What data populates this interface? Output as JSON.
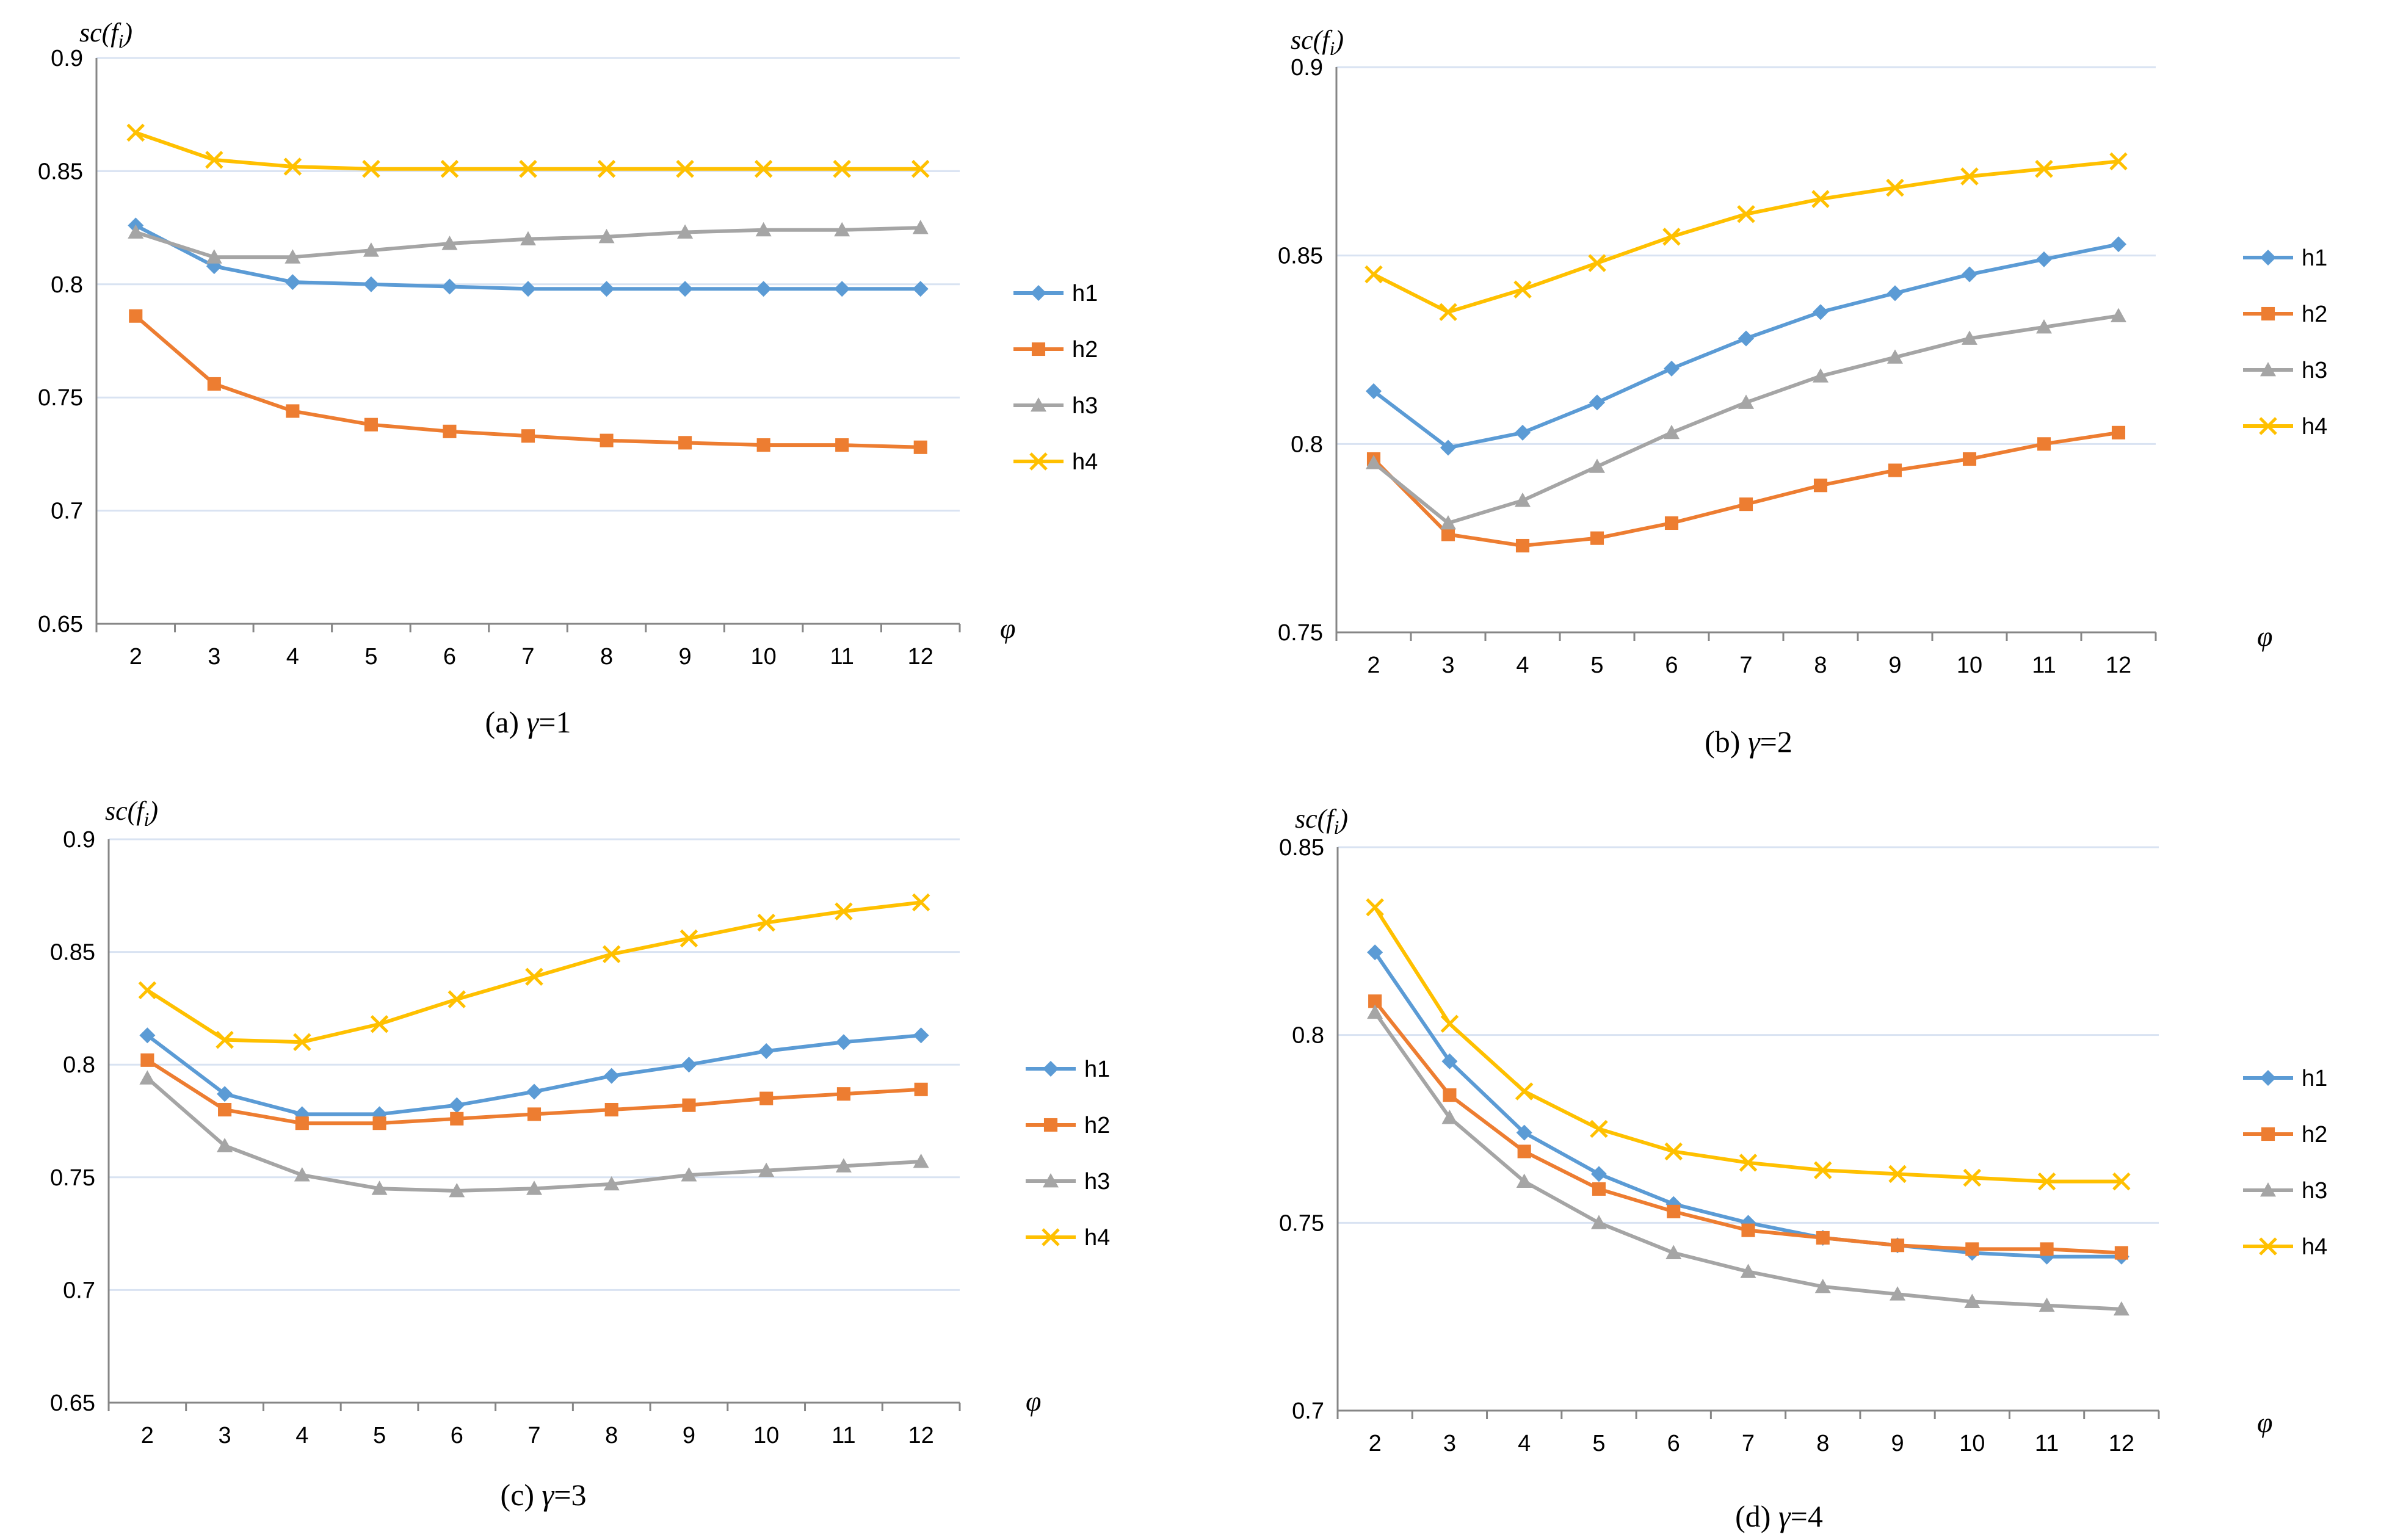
{
  "chart_data": [
    {
      "type": "line",
      "caption_prefix": "(a) ",
      "caption_var": "γ",
      "caption_value": "=1",
      "ylabel_main": "sc(f",
      "ylabel_sub": "i",
      "ylabel_close": ")",
      "xlabel": "φ",
      "ylim": [
        0.65,
        0.9
      ],
      "yticks": [
        "0.65",
        "0.7",
        "0.75",
        "0.8",
        "0.85",
        "0.9"
      ],
      "categories": [
        "2",
        "3",
        "4",
        "5",
        "6",
        "7",
        "8",
        "9",
        "10",
        "11",
        "12"
      ],
      "grid": true,
      "legend": "right",
      "series": [
        {
          "name": "h1",
          "values": [
            0.826,
            0.808,
            0.801,
            0.8,
            0.799,
            0.798,
            0.798,
            0.798,
            0.798,
            0.798,
            0.798
          ]
        },
        {
          "name": "h2",
          "values": [
            0.786,
            0.756,
            0.744,
            0.738,
            0.735,
            0.733,
            0.731,
            0.73,
            0.729,
            0.729,
            0.728
          ]
        },
        {
          "name": "h3",
          "values": [
            0.823,
            0.812,
            0.812,
            0.815,
            0.818,
            0.82,
            0.821,
            0.823,
            0.824,
            0.824,
            0.825
          ]
        },
        {
          "name": "h4",
          "values": [
            0.867,
            0.855,
            0.852,
            0.851,
            0.851,
            0.851,
            0.851,
            0.851,
            0.851,
            0.851,
            0.851
          ]
        }
      ]
    },
    {
      "type": "line",
      "caption_prefix": "(b) ",
      "caption_var": "γ",
      "caption_value": "=2",
      "ylabel_main": "sc(f",
      "ylabel_sub": "i",
      "ylabel_close": ")",
      "xlabel": "φ",
      "ylim": [
        0.75,
        0.9
      ],
      "yticks": [
        "0.75",
        "0.8",
        "0.85",
        "0.9"
      ],
      "categories": [
        "2",
        "3",
        "4",
        "5",
        "6",
        "7",
        "8",
        "9",
        "10",
        "11",
        "12"
      ],
      "grid": true,
      "legend": "right",
      "series": [
        {
          "name": "h1",
          "values": [
            0.814,
            0.799,
            0.803,
            0.811,
            0.82,
            0.828,
            0.835,
            0.84,
            0.845,
            0.849,
            0.853
          ]
        },
        {
          "name": "h2",
          "values": [
            0.796,
            0.776,
            0.773,
            0.775,
            0.779,
            0.784,
            0.789,
            0.793,
            0.796,
            0.8,
            0.803
          ]
        },
        {
          "name": "h3",
          "values": [
            0.795,
            0.779,
            0.785,
            0.794,
            0.803,
            0.811,
            0.818,
            0.823,
            0.828,
            0.831,
            0.834
          ]
        },
        {
          "name": "h4",
          "values": [
            0.845,
            0.835,
            0.841,
            0.848,
            0.855,
            0.861,
            0.865,
            0.868,
            0.871,
            0.873,
            0.875
          ]
        }
      ]
    },
    {
      "type": "line",
      "caption_prefix": "(c) ",
      "caption_var": "γ",
      "caption_value": "=3",
      "ylabel_main": "sc(f",
      "ylabel_sub": "i",
      "ylabel_close": ")",
      "xlabel": "φ",
      "ylim": [
        0.65,
        0.9
      ],
      "yticks": [
        "0.65",
        "0.7",
        "0.75",
        "0.8",
        "0.85",
        "0.9"
      ],
      "categories": [
        "2",
        "3",
        "4",
        "5",
        "6",
        "7",
        "8",
        "9",
        "10",
        "11",
        "12"
      ],
      "grid": true,
      "legend": "right",
      "series": [
        {
          "name": "h1",
          "values": [
            0.813,
            0.787,
            0.778,
            0.778,
            0.782,
            0.788,
            0.795,
            0.8,
            0.806,
            0.81,
            0.813
          ]
        },
        {
          "name": "h2",
          "values": [
            0.802,
            0.78,
            0.774,
            0.774,
            0.776,
            0.778,
            0.78,
            0.782,
            0.785,
            0.787,
            0.789
          ]
        },
        {
          "name": "h3",
          "values": [
            0.794,
            0.764,
            0.751,
            0.745,
            0.744,
            0.745,
            0.747,
            0.751,
            0.753,
            0.755,
            0.757
          ]
        },
        {
          "name": "h4",
          "values": [
            0.833,
            0.811,
            0.81,
            0.818,
            0.829,
            0.839,
            0.849,
            0.856,
            0.863,
            0.868,
            0.872
          ]
        }
      ]
    },
    {
      "type": "line",
      "caption_prefix": "(d) ",
      "caption_var": "γ",
      "caption_value": "=4",
      "ylabel_main": "sc(f",
      "ylabel_sub": "i",
      "ylabel_close": ")",
      "xlabel": "φ",
      "ylim": [
        0.7,
        0.85
      ],
      "yticks": [
        "0.7",
        "0.75",
        "0.8",
        "0.85"
      ],
      "categories": [
        "2",
        "3",
        "4",
        "5",
        "6",
        "7",
        "8",
        "9",
        "10",
        "11",
        "12"
      ],
      "grid": true,
      "legend": "right",
      "series": [
        {
          "name": "h1",
          "values": [
            0.822,
            0.793,
            0.774,
            0.763,
            0.755,
            0.75,
            0.746,
            0.744,
            0.742,
            0.741,
            0.741
          ]
        },
        {
          "name": "h2",
          "values": [
            0.809,
            0.784,
            0.769,
            0.759,
            0.753,
            0.748,
            0.746,
            0.744,
            0.743,
            0.743,
            0.742
          ]
        },
        {
          "name": "h3",
          "values": [
            0.806,
            0.778,
            0.761,
            0.75,
            0.742,
            0.737,
            0.733,
            0.731,
            0.729,
            0.728,
            0.727
          ]
        },
        {
          "name": "h4",
          "values": [
            0.834,
            0.803,
            0.785,
            0.775,
            0.769,
            0.766,
            0.764,
            0.763,
            0.762,
            0.761,
            0.761
          ]
        }
      ]
    }
  ],
  "series_style": {
    "h1": {
      "color": "#5B9BD5",
      "marker": "diamond"
    },
    "h2": {
      "color": "#ED7D31",
      "marker": "square"
    },
    "h3": {
      "color": "#A5A5A5",
      "marker": "triangle"
    },
    "h4": {
      "color": "#FFC000",
      "marker": "x"
    }
  },
  "gridline_color": "#D9E3F2",
  "axis_color": "#868686"
}
